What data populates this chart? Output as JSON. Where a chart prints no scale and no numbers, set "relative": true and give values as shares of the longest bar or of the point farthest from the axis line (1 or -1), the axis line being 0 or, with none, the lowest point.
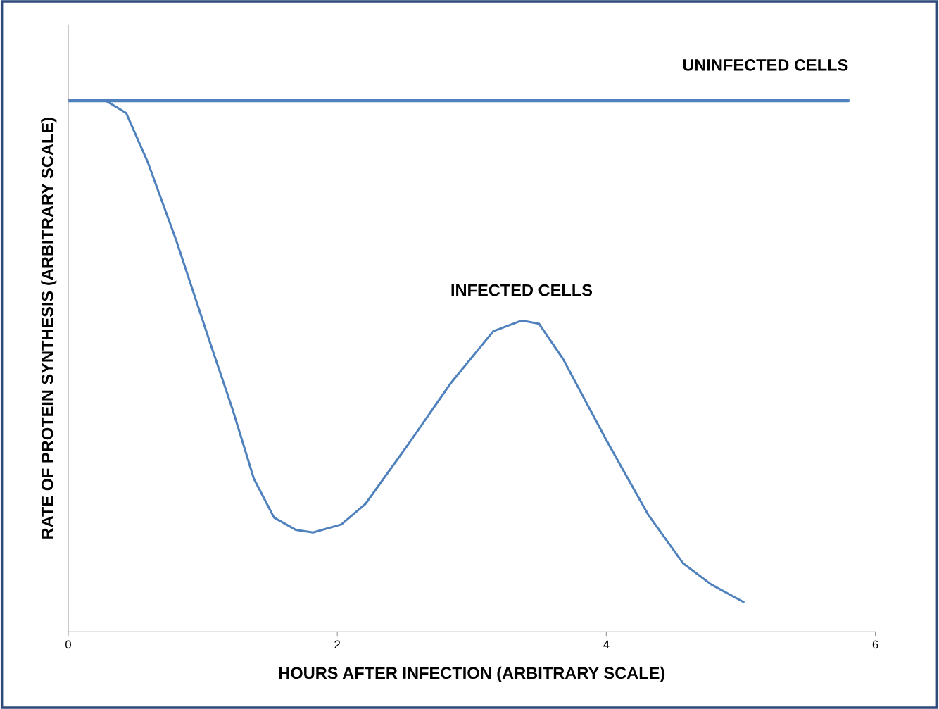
{
  "chart_data": {
    "type": "line",
    "relative": true,
    "xlabel": "HOURS AFTER INFECTION (ARBITRARY SCALE)",
    "ylabel": "RATE OF PROTEIN SYNTHESIS (ARBITRARY SCALE)",
    "xlim": [
      0,
      6
    ],
    "xticks": [
      0,
      2,
      4,
      6
    ],
    "grid": false,
    "legend": false,
    "series": [
      {
        "name": "UNINFECTED CELLS",
        "color": "#4f81bd",
        "x": [
          0,
          5.8
        ],
        "values": [
          1.0,
          1.0
        ]
      },
      {
        "name": "INFECTED CELLS",
        "color": "#4f81bd",
        "x": [
          0,
          0.28,
          0.43,
          0.59,
          0.8,
          1.06,
          1.22,
          1.38,
          1.53,
          1.69,
          1.82,
          2.03,
          2.21,
          2.53,
          2.84,
          3.16,
          3.37,
          3.5,
          3.68,
          4.0,
          4.31,
          4.57,
          4.78,
          5.02
        ],
        "values": [
          1.0,
          1.0,
          0.977,
          0.885,
          0.739,
          0.54,
          0.42,
          0.288,
          0.215,
          0.192,
          0.187,
          0.202,
          0.241,
          0.354,
          0.467,
          0.566,
          0.586,
          0.58,
          0.513,
          0.361,
          0.221,
          0.129,
          0.089,
          0.056
        ]
      }
    ]
  }
}
